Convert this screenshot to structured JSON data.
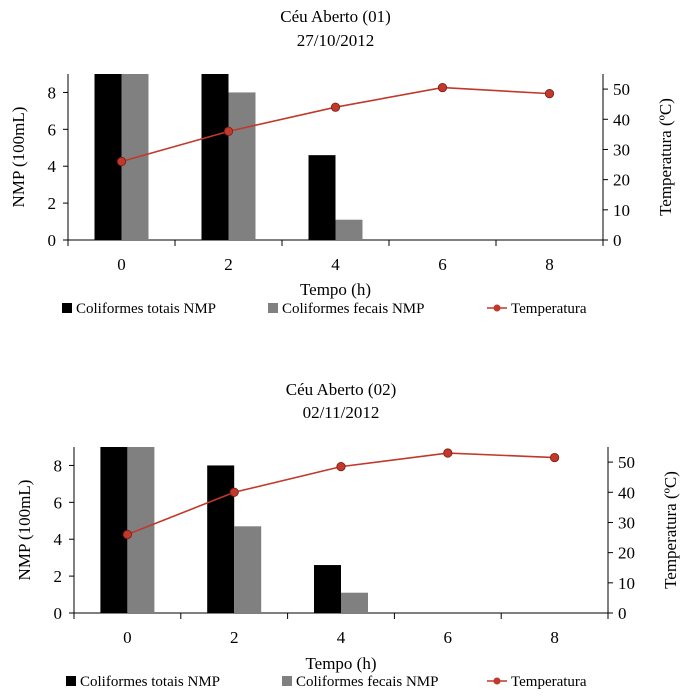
{
  "chart_data": [
    {
      "type": "bar",
      "title": "Céu Aberto (01)",
      "subtitle": "27/10/2012",
      "xlabel": "Tempo (h)",
      "ylabel": "NMP (100mL)",
      "y2label": "Temperatura (ºC)",
      "x_ticks": [
        "0",
        "2",
        "4",
        "6",
        "8"
      ],
      "y_ticks": [
        "0",
        "2",
        "4",
        "6",
        "8"
      ],
      "y2_ticks": [
        "0",
        "10",
        "20",
        "30",
        "40",
        "50"
      ],
      "categories": [
        0,
        2,
        4,
        6,
        8
      ],
      "ylim": [
        0,
        9
      ],
      "y2lim": [
        0,
        55
      ],
      "legend_position": "bottom",
      "series": [
        {
          "name": "Coliformes totais NMP",
          "kind": "bar",
          "color": "#000000",
          "values": [
            9,
            9,
            4.6,
            0,
            0
          ]
        },
        {
          "name": "Coliformes fecais NMP",
          "kind": "bar",
          "color": "#808080",
          "values": [
            9,
            8,
            1.1,
            0,
            0
          ]
        },
        {
          "name": "Temperatura",
          "kind": "line",
          "axis": "right",
          "color": "#c0392b",
          "values": [
            26,
            36,
            44,
            50.5,
            48.5
          ]
        }
      ]
    },
    {
      "type": "bar",
      "title": "Céu Aberto (02)",
      "subtitle": "02/11/2012",
      "xlabel": "Tempo (h)",
      "ylabel": "NMP (100mL)",
      "y2label": "Temperatura (ºC)",
      "x_ticks": [
        "0",
        "2",
        "4",
        "6",
        "8"
      ],
      "y_ticks": [
        "0",
        "2",
        "4",
        "6",
        "8"
      ],
      "y2_ticks": [
        "0",
        "10",
        "20",
        "30",
        "40",
        "50"
      ],
      "categories": [
        0,
        2,
        4,
        6,
        8
      ],
      "ylim": [
        0,
        9
      ],
      "y2lim": [
        0,
        55
      ],
      "legend_position": "bottom",
      "series": [
        {
          "name": "Coliformes totais NMP",
          "kind": "bar",
          "color": "#000000",
          "values": [
            9,
            8,
            2.6,
            0,
            0
          ]
        },
        {
          "name": "Coliformes fecais NMP",
          "kind": "bar",
          "color": "#808080",
          "values": [
            9,
            4.7,
            1.1,
            0,
            0
          ]
        },
        {
          "name": "Temperatura",
          "kind": "line",
          "axis": "right",
          "color": "#c0392b",
          "values": [
            26,
            40,
            48.5,
            53,
            51.5
          ]
        }
      ]
    }
  ]
}
